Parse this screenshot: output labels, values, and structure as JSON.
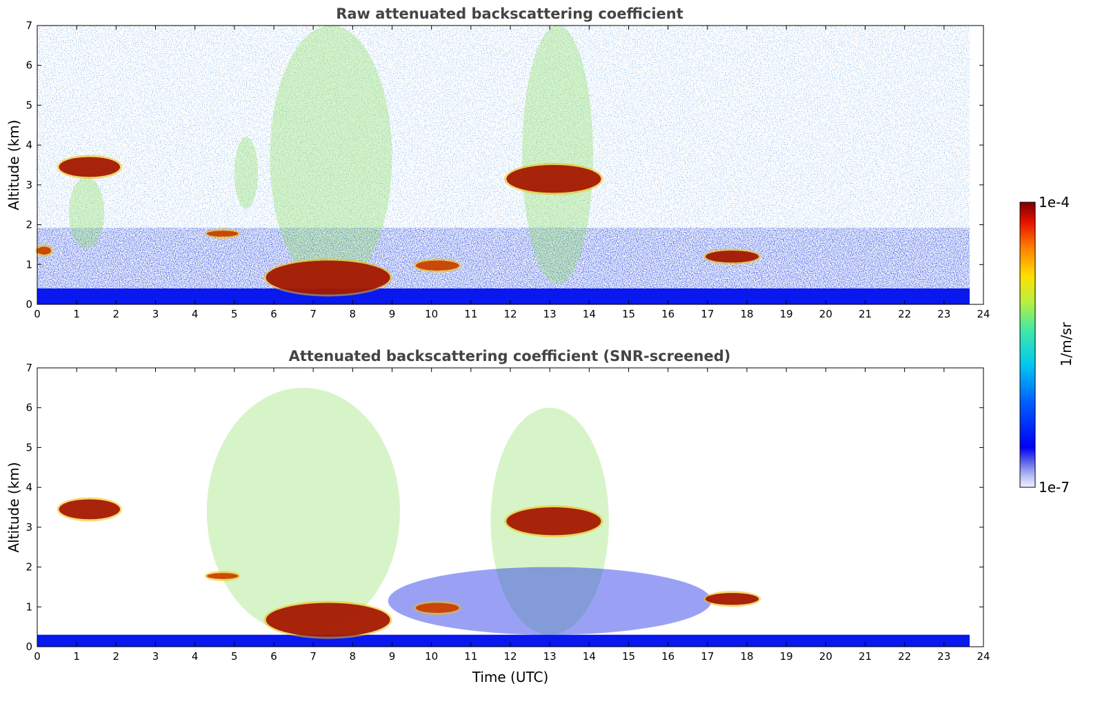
{
  "chart_data": [
    {
      "type": "heatmap",
      "title": "Raw attenuated backscattering coefficient",
      "xlabel": "",
      "ylabel": "Altitude (km)",
      "xlim": [
        0,
        24
      ],
      "ylim": [
        0,
        7
      ],
      "xticks": [
        "0",
        "1",
        "2",
        "3",
        "4",
        "5",
        "6",
        "7",
        "8",
        "9",
        "10",
        "11",
        "12",
        "13",
        "14",
        "15",
        "16",
        "17",
        "18",
        "19",
        "20",
        "21",
        "22",
        "23",
        "24"
      ],
      "yticks": [
        "0",
        "1",
        "2",
        "3",
        "4",
        "5",
        "6",
        "7"
      ],
      "data_extent_hours": [
        0,
        23.65
      ],
      "features": [
        {
          "kind": "surface_layer",
          "x": [
            0,
            23.65
          ],
          "top_km": 0.4
        },
        {
          "kind": "cloud",
          "x": [
            0.55,
            2.1
          ],
          "alt_km": [
            3.2,
            3.7
          ],
          "intensity": 1.0
        },
        {
          "kind": "cloud",
          "x": [
            5.8,
            8.95
          ],
          "alt_km": [
            0.25,
            1.1
          ],
          "intensity": 0.95
        },
        {
          "kind": "cloud",
          "x": [
            11.9,
            14.3
          ],
          "alt_km": [
            2.8,
            3.5
          ],
          "intensity": 1.0
        },
        {
          "kind": "cloud",
          "x": [
            16.95,
            18.3
          ],
          "alt_km": [
            1.05,
            1.35
          ],
          "intensity": 0.95
        },
        {
          "kind": "cloud",
          "x": [
            4.3,
            5.1
          ],
          "alt_km": [
            1.7,
            1.85
          ],
          "intensity": 0.9
        },
        {
          "kind": "cloud",
          "x": [
            9.6,
            10.7
          ],
          "alt_km": [
            0.85,
            1.1
          ],
          "intensity": 0.85
        },
        {
          "kind": "cloud",
          "x": [
            0.0,
            0.35
          ],
          "alt_km": [
            1.25,
            1.45
          ],
          "intensity": 0.9
        },
        {
          "kind": "aerosol",
          "x": [
            0.8,
            1.7
          ],
          "alt_km": [
            1.4,
            3.2
          ],
          "intensity": 0.6
        },
        {
          "kind": "aerosol",
          "x": [
            5.0,
            5.6
          ],
          "alt_km": [
            2.4,
            4.2
          ],
          "intensity": 0.55
        },
        {
          "kind": "aerosol",
          "x": [
            5.9,
            9.0
          ],
          "alt_km": [
            0.4,
            7.0
          ],
          "intensity": 0.45
        },
        {
          "kind": "aerosol",
          "x": [
            12.3,
            14.1
          ],
          "alt_km": [
            0.5,
            7.0
          ],
          "intensity": 0.45
        }
      ]
    },
    {
      "type": "heatmap",
      "title": "Attenuated backscattering coefficient (SNR-screened)",
      "xlabel": "Time (UTC)",
      "ylabel": "Altitude (km)",
      "xlim": [
        0,
        24
      ],
      "ylim": [
        0,
        7
      ],
      "xticks": [
        "0",
        "1",
        "2",
        "3",
        "4",
        "5",
        "6",
        "7",
        "8",
        "9",
        "10",
        "11",
        "12",
        "13",
        "14",
        "15",
        "16",
        "17",
        "18",
        "19",
        "20",
        "21",
        "22",
        "23",
        "24"
      ],
      "yticks": [
        "0",
        "1",
        "2",
        "3",
        "4",
        "5",
        "6",
        "7"
      ],
      "data_extent_hours": [
        0,
        23.65
      ],
      "features": [
        {
          "kind": "surface_layer",
          "x": [
            0,
            23.65
          ],
          "top_km": 0.3
        },
        {
          "kind": "cloud",
          "x": [
            0.55,
            2.1
          ],
          "alt_km": [
            3.2,
            3.7
          ],
          "intensity": 1.0
        },
        {
          "kind": "cloud",
          "x": [
            5.8,
            8.95
          ],
          "alt_km": [
            0.25,
            1.1
          ],
          "intensity": 0.95
        },
        {
          "kind": "cloud",
          "x": [
            11.9,
            14.3
          ],
          "alt_km": [
            2.8,
            3.5
          ],
          "intensity": 1.0
        },
        {
          "kind": "cloud",
          "x": [
            16.95,
            18.3
          ],
          "alt_km": [
            1.05,
            1.35
          ],
          "intensity": 0.95
        },
        {
          "kind": "cloud",
          "x": [
            4.3,
            5.1
          ],
          "alt_km": [
            1.7,
            1.85
          ],
          "intensity": 0.9
        },
        {
          "kind": "cloud",
          "x": [
            9.6,
            10.7
          ],
          "alt_km": [
            0.85,
            1.1
          ],
          "intensity": 0.85
        },
        {
          "kind": "aerosol",
          "x": [
            4.3,
            9.2
          ],
          "alt_km": [
            0.3,
            6.5
          ],
          "intensity": 0.45
        },
        {
          "kind": "aerosol",
          "x": [
            11.5,
            14.5
          ],
          "alt_km": [
            0.3,
            6.0
          ],
          "intensity": 0.45
        },
        {
          "kind": "boundary_layer",
          "x": [
            8.9,
            17.1
          ],
          "alt_km": [
            0.3,
            2.0
          ],
          "intensity": 0.2
        }
      ]
    }
  ],
  "colorbar": {
    "label": "1/m/sr",
    "max_label": "1e-4",
    "min_label": "1e-7",
    "scale": "log",
    "range": [
      1e-07,
      0.0001
    ],
    "colormap": "jet"
  }
}
